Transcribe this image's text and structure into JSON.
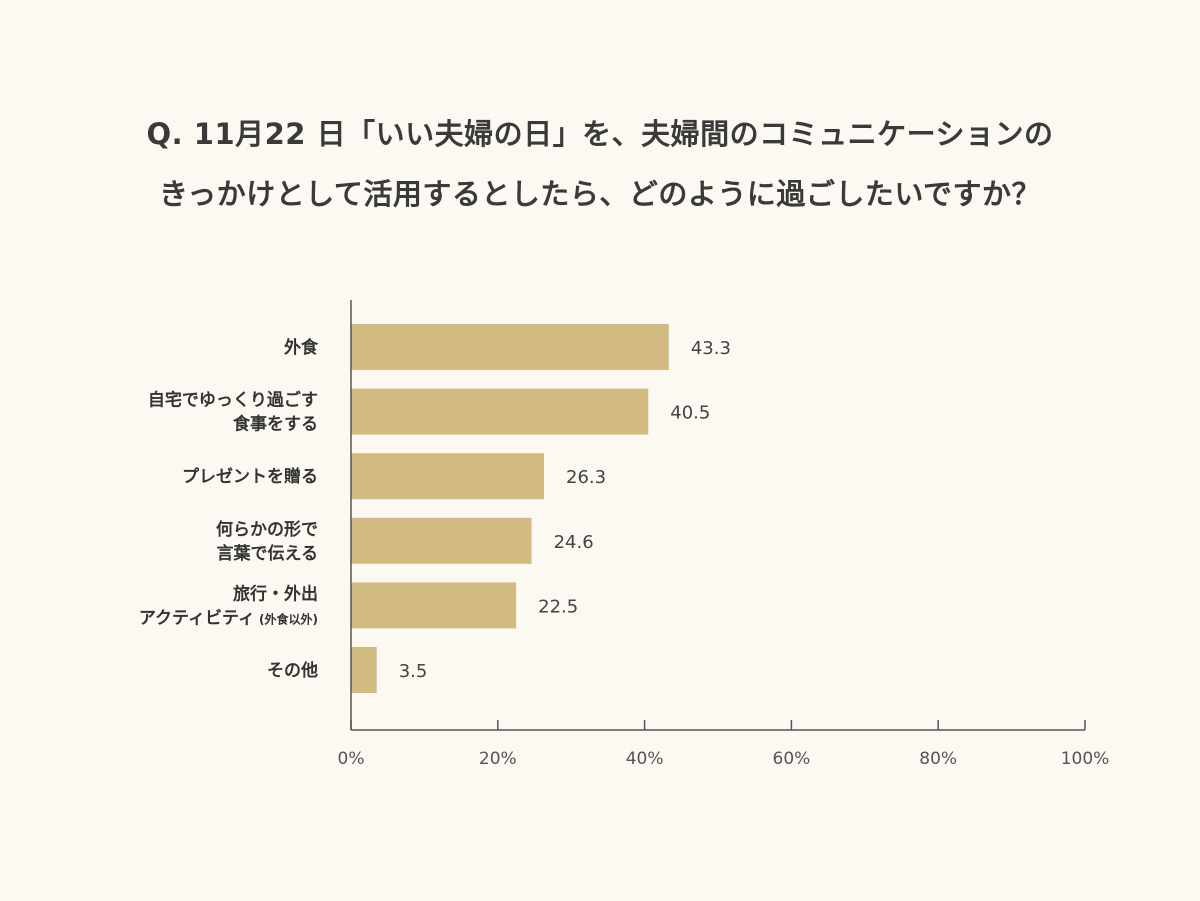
{
  "title": {
    "line1": "Q. 11月22 日「いい夫婦の日」を、夫婦間のコミュニケーションの",
    "line2": "きっかけとして活用するとしたら、どのように過ごしたいですか？"
  },
  "colors": {
    "background": "#fcf9f2",
    "bar": "#d1bb81",
    "axis": "#555555",
    "text": "#333333"
  },
  "chart_data": {
    "type": "bar",
    "orientation": "horizontal",
    "title": "Q. 11月22 日「いい夫婦の日」を、夫婦間のコミュニケーションのきっかけとして活用するとしたら、どのように過ごしたいですか？",
    "categories": [
      {
        "lines": [
          "外食"
        ]
      },
      {
        "lines": [
          "自宅でゆっくり過ごす",
          "食事をする"
        ]
      },
      {
        "lines": [
          "プレゼントを贈る"
        ]
      },
      {
        "lines": [
          "何らかの形で",
          "言葉で伝える"
        ]
      },
      {
        "lines": [
          "旅行・外出",
          "アクティビティ"
        ],
        "note": "(外食以外)"
      },
      {
        "lines": [
          "その他"
        ]
      }
    ],
    "values": [
      43.3,
      40.5,
      26.3,
      24.6,
      22.5,
      3.5
    ],
    "value_labels": [
      "43.3",
      "40.5",
      "26.3",
      "24.6",
      "22.5",
      "3.5"
    ],
    "xlim": [
      0,
      100
    ],
    "xticks": [
      0,
      20,
      40,
      60,
      80,
      100
    ],
    "xtick_labels": [
      "0%",
      "20%",
      "40%",
      "60%",
      "80%",
      "100%"
    ],
    "xlabel": "",
    "ylabel": "",
    "grid": false,
    "legend": false
  }
}
